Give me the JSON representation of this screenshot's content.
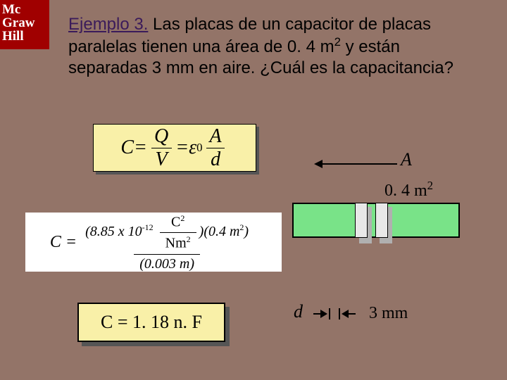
{
  "logo": {
    "line1": "Mc",
    "line2": "Graw",
    "line3": "Hill"
  },
  "title": {
    "ejemplo": "Ejemplo 3.",
    "text1": " Las placas de un capacitor de placas paralelas tienen una área de 0. 4 m",
    "sup": "2",
    "text2": " y están separadas 3 mm en aire. ¿Cuál es la capacitancia?"
  },
  "formula1": {
    "C": "C",
    "eq": " = ",
    "Q": "Q",
    "V": "V",
    "eps": "ε",
    "eps_sub": "0",
    "A": "A",
    "d": "d"
  },
  "formula2": {
    "lhs": "C = ",
    "num_a": "(8.85 x 10",
    "num_exp": "-12",
    "num_unit_top": "C",
    "num_unit_top_exp": "2",
    "num_unit_bot": "Nm",
    "num_unit_bot_exp": "2",
    "num_b": ")(0.4 m",
    "num_b_exp": "2",
    "num_c": ")",
    "den": "(0.003 m)"
  },
  "result": {
    "text": "C = 1. 18 n. F"
  },
  "diagram": {
    "A_label": "A",
    "A_value": "0. 4 m",
    "A_value_exp": "2",
    "d_label": "d",
    "d_value": "3 mm",
    "plate_fill": "#79e388",
    "plate_color": "#e8e8e8"
  },
  "colors": {
    "background": "#937468",
    "logo_bg": "#a00000",
    "box_bg": "#f9f0a8",
    "ejemplo": "#3b1b5a"
  }
}
